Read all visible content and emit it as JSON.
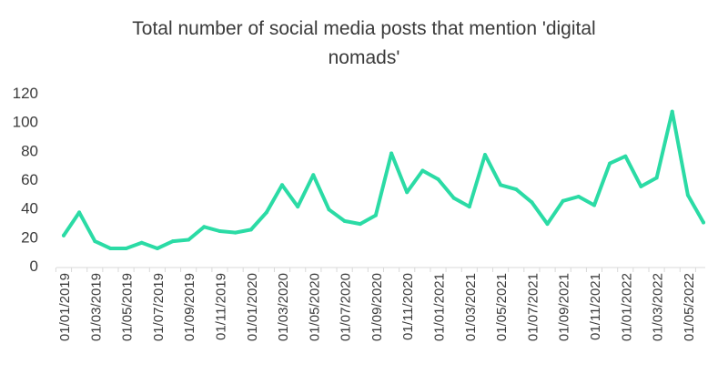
{
  "chart_data": {
    "type": "line",
    "title": "Total number of social media posts that mention 'digital nomads'",
    "title_lines": [
      "Total number of social media posts that mention 'digital",
      "nomads'"
    ],
    "xlabel": "",
    "ylabel": "",
    "ylim": [
      0,
      120
    ],
    "yticks": [
      "0",
      "20",
      "40",
      "60",
      "80",
      "100",
      "120"
    ],
    "grid": false,
    "legend": "none",
    "line_color": "#2bdba5",
    "x_tick_labels": [
      "01/01/2019",
      "01/03/2019",
      "01/05/2019",
      "01/07/2019",
      "01/09/2019",
      "01/11/2019",
      "01/01/2020",
      "01/03/2020",
      "01/05/2020",
      "01/07/2020",
      "01/09/2020",
      "01/11/2020",
      "01/01/2021",
      "01/03/2021",
      "01/05/2021",
      "01/07/2021",
      "01/09/2021",
      "01/11/2021",
      "01/01/2022",
      "01/03/2022",
      "01/05/2022"
    ],
    "x": [
      "01/01/2019",
      "01/02/2019",
      "01/03/2019",
      "01/04/2019",
      "01/05/2019",
      "01/06/2019",
      "01/07/2019",
      "01/08/2019",
      "01/09/2019",
      "01/10/2019",
      "01/11/2019",
      "01/12/2019",
      "01/01/2020",
      "01/02/2020",
      "01/03/2020",
      "01/04/2020",
      "01/05/2020",
      "01/06/2020",
      "01/07/2020",
      "01/08/2020",
      "01/09/2020",
      "01/10/2020",
      "01/11/2020",
      "01/12/2020",
      "01/01/2021",
      "01/02/2021",
      "01/03/2021",
      "01/04/2021",
      "01/05/2021",
      "01/06/2021",
      "01/07/2021",
      "01/08/2021",
      "01/09/2021",
      "01/10/2021",
      "01/11/2021",
      "01/12/2021",
      "01/01/2022",
      "01/02/2022",
      "01/03/2022",
      "01/04/2022",
      "01/05/2022",
      "01/06/2022"
    ],
    "series": [
      {
        "values": [
          21,
          37,
          17,
          12,
          12,
          16,
          12,
          17,
          18,
          27,
          24,
          23,
          25,
          37,
          56,
          41,
          63,
          39,
          31,
          29,
          35,
          78,
          51,
          66,
          60,
          47,
          41,
          77,
          56,
          53,
          44,
          29,
          45,
          48,
          42,
          71,
          76,
          55,
          61,
          107,
          49,
          30
        ]
      }
    ]
  }
}
